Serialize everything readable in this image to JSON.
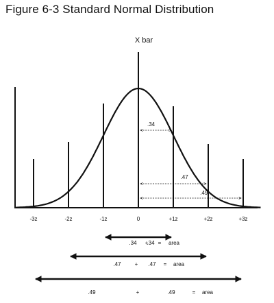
{
  "figure": {
    "title": "Figure 6-3  Standard Normal Distribution",
    "mean_label": "X bar"
  },
  "chart_data": {
    "type": "area",
    "curve": "standard normal",
    "z_ticks": [
      -3,
      -2,
      -1,
      0,
      1,
      2,
      3
    ],
    "tick_labels": [
      "-3z",
      "-2z",
      "-1z",
      "0",
      "+1z",
      "+2z",
      "+3z"
    ],
    "areas": [
      {
        "from_z": 0,
        "to_z": 1,
        "value": ".34"
      },
      {
        "from_z": 0,
        "to_z": 2,
        "value": ".47"
      },
      {
        "from_z": 0,
        "to_z": 3,
        "value": ".49"
      }
    ]
  },
  "equations": [
    {
      "from_z": -1,
      "to_z": 1,
      "a": ".34",
      "plus": "+",
      "b": ".34",
      "equals": "=",
      "result": "area"
    },
    {
      "from_z": -2,
      "to_z": 2,
      "a": ".47",
      "plus": "+",
      "b": ".47",
      "equals": "=",
      "result": "area"
    },
    {
      "from_z": -3,
      "to_z": 3,
      "a": ".49",
      "plus": "+",
      "b": ".49",
      "equals": "=",
      "result": "area"
    }
  ],
  "colors": {
    "ink": "#111111",
    "background": "#ffffff"
  }
}
